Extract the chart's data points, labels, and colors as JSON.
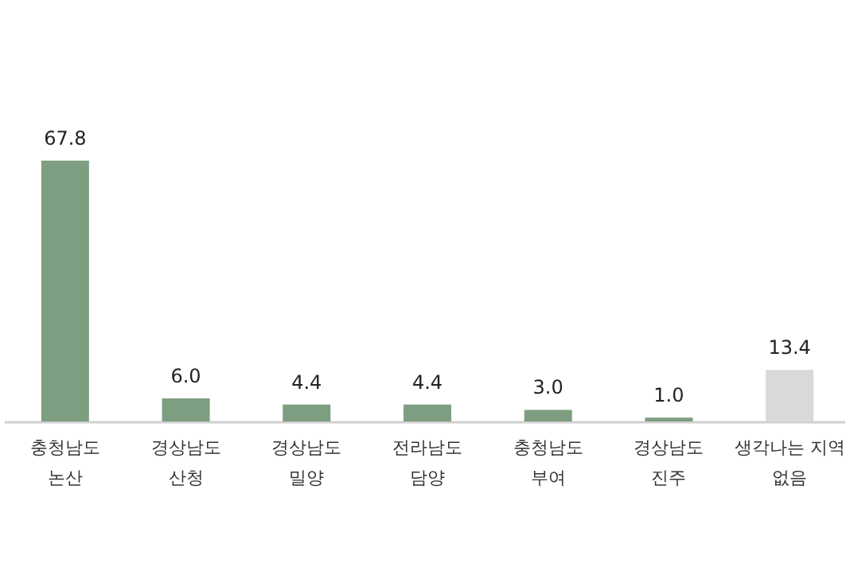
{
  "chart_data": {
    "type": "bar",
    "categories": [
      "충청남도 논산",
      "경상남도 산청",
      "경상남도 밀양",
      "전라남도 담양",
      "충청남도 부여",
      "경상남도 진주",
      "생각나는 지역 없음"
    ],
    "values": [
      67.8,
      6.0,
      4.4,
      4.4,
      3.0,
      1.0,
      13.4
    ],
    "colors": [
      "#7d9e80",
      "#7d9e80",
      "#7d9e80",
      "#7d9e80",
      "#7d9e80",
      "#7d9e80",
      "#d9d9d9"
    ],
    "value_labels": [
      "67.8",
      "6.0",
      "4.4",
      "4.4",
      "3.0",
      "1.0",
      "13.4"
    ]
  }
}
